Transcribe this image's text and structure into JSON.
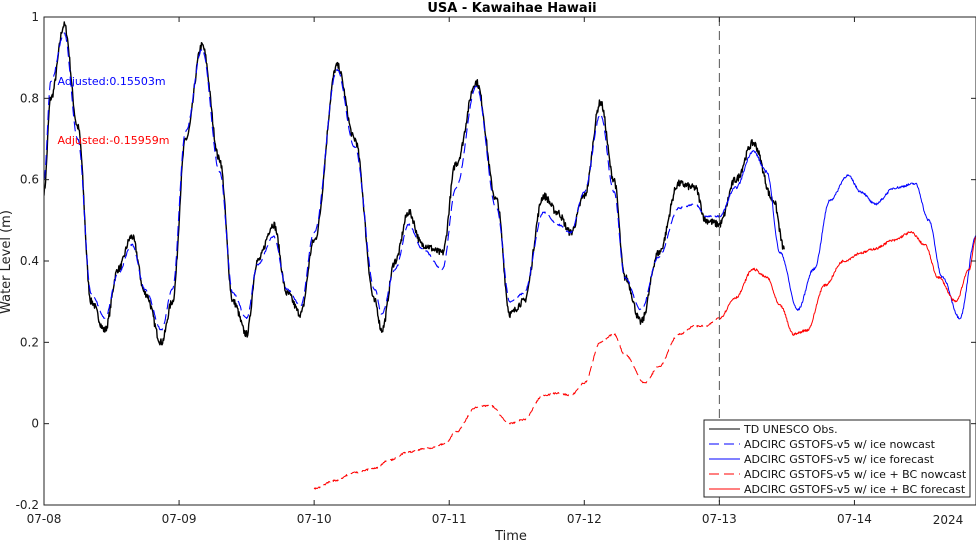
{
  "chart_data": {
    "type": "line",
    "title": "USA - Kawaihae Hawaii",
    "xlabel": "Time",
    "ylabel": "Water Level (m)",
    "xlim": [
      0,
      6.9
    ],
    "ylim": [
      -0.2,
      1.0
    ],
    "x_ticks": [
      {
        "value": 0,
        "label": "07-08"
      },
      {
        "value": 1,
        "label": "07-09"
      },
      {
        "value": 2,
        "label": "07-10"
      },
      {
        "value": 3,
        "label": "07-11"
      },
      {
        "value": 4,
        "label": "07-12"
      },
      {
        "value": 5,
        "label": "07-13"
      },
      {
        "value": 6,
        "label": "07-14"
      }
    ],
    "y_ticks": [
      -0.2,
      0,
      0.2,
      0.4,
      0.6,
      0.8,
      1
    ],
    "y_tick_labels": [
      "-0.2",
      "0",
      "0.2",
      "0.4",
      "0.6",
      "0.8",
      "1"
    ],
    "year_label": "2024",
    "grid": false,
    "forecast_start_x": 5.0,
    "legend_position": "bottom-right",
    "annotations": [
      {
        "text": "Adjusted:0.15503m",
        "x": 0.1,
        "y": 0.843,
        "color": "#0000ff"
      },
      {
        "text": "Adjusted:-0.15959m",
        "x": 0.1,
        "y": 0.697,
        "color": "#ff0000"
      }
    ],
    "series": [
      {
        "name": "TD UNESCO Obs.",
        "color": "#000000",
        "dash": "solid",
        "width": 1.4,
        "x": [
          0.0,
          0.05,
          0.15,
          0.25,
          0.35,
          0.45,
          0.55,
          0.65,
          0.75,
          0.87,
          0.95,
          1.05,
          1.17,
          1.3,
          1.4,
          1.5,
          1.58,
          1.7,
          1.8,
          1.9,
          2.0,
          2.17,
          2.3,
          2.45,
          2.5,
          2.6,
          2.7,
          2.8,
          2.95,
          3.05,
          3.2,
          3.35,
          3.45,
          3.55,
          3.7,
          3.8,
          3.9,
          4.0,
          4.12,
          4.22,
          4.3,
          4.42,
          4.55,
          4.7,
          4.82,
          4.9,
          5.0,
          5.12,
          5.25,
          5.4,
          5.48
        ],
        "y": [
          0.57,
          0.8,
          0.98,
          0.73,
          0.3,
          0.23,
          0.38,
          0.46,
          0.32,
          0.2,
          0.3,
          0.7,
          0.93,
          0.65,
          0.3,
          0.22,
          0.4,
          0.49,
          0.32,
          0.27,
          0.45,
          0.88,
          0.7,
          0.3,
          0.23,
          0.4,
          0.52,
          0.44,
          0.42,
          0.64,
          0.84,
          0.55,
          0.27,
          0.3,
          0.56,
          0.52,
          0.47,
          0.56,
          0.79,
          0.6,
          0.36,
          0.25,
          0.42,
          0.59,
          0.58,
          0.5,
          0.49,
          0.6,
          0.69,
          0.55,
          0.43
        ]
      },
      {
        "name": "ADCIRC GSTOFS-v5 w/ ice nowcast",
        "color": "#0000ff",
        "dash": "dashed",
        "width": 1.1,
        "x": [
          0.0,
          0.05,
          0.15,
          0.25,
          0.35,
          0.45,
          0.55,
          0.65,
          0.75,
          0.87,
          0.95,
          1.05,
          1.17,
          1.3,
          1.4,
          1.5,
          1.58,
          1.7,
          1.8,
          1.9,
          2.0,
          2.17,
          2.3,
          2.45,
          2.5,
          2.6,
          2.7,
          2.8,
          2.95,
          3.05,
          3.2,
          3.35,
          3.45,
          3.55,
          3.7,
          3.8,
          3.9,
          4.0,
          4.12,
          4.22,
          4.3,
          4.42,
          4.55,
          4.7,
          4.82,
          4.9,
          5.0
        ],
        "y": [
          0.6,
          0.84,
          0.96,
          0.7,
          0.32,
          0.26,
          0.37,
          0.44,
          0.33,
          0.23,
          0.33,
          0.72,
          0.92,
          0.62,
          0.32,
          0.26,
          0.39,
          0.46,
          0.33,
          0.29,
          0.47,
          0.87,
          0.68,
          0.33,
          0.27,
          0.38,
          0.49,
          0.43,
          0.38,
          0.58,
          0.83,
          0.53,
          0.3,
          0.32,
          0.52,
          0.49,
          0.47,
          0.57,
          0.76,
          0.57,
          0.36,
          0.28,
          0.41,
          0.53,
          0.54,
          0.51,
          0.51
        ]
      },
      {
        "name": "ADCIRC GSTOFS-v5 w/ ice forecast",
        "color": "#0000ff",
        "dash": "solid",
        "width": 1.0,
        "x": [
          5.0,
          5.12,
          5.25,
          5.35,
          5.45,
          5.58,
          5.7,
          5.82,
          5.95,
          6.05,
          6.15,
          6.3,
          6.45,
          6.55,
          6.65,
          6.78,
          6.9
        ],
        "y": [
          0.51,
          0.58,
          0.67,
          0.62,
          0.42,
          0.28,
          0.38,
          0.55,
          0.61,
          0.57,
          0.54,
          0.58,
          0.59,
          0.5,
          0.36,
          0.26,
          0.46
        ]
      },
      {
        "name": "ADCIRC GSTOFS-v5 w/ ice + BC nowcast",
        "color": "#ff0000",
        "dash": "dashed",
        "width": 1.0,
        "x": [
          2.0,
          2.15,
          2.3,
          2.45,
          2.55,
          2.7,
          2.85,
          2.97,
          3.05,
          3.2,
          3.3,
          3.45,
          3.55,
          3.7,
          3.8,
          3.9,
          4.0,
          4.12,
          4.22,
          4.3,
          4.45,
          4.55,
          4.7,
          4.82,
          4.9,
          5.0
        ],
        "y": [
          -0.16,
          -0.14,
          -0.12,
          -0.11,
          -0.09,
          -0.07,
          -0.06,
          -0.05,
          -0.02,
          0.04,
          0.045,
          0.0,
          0.01,
          0.07,
          0.075,
          0.07,
          0.1,
          0.2,
          0.22,
          0.17,
          0.1,
          0.14,
          0.22,
          0.24,
          0.24,
          0.26
        ]
      },
      {
        "name": "ADCIRC GSTOFS-v5 w/ ice + BC forecast",
        "color": "#ff0000",
        "dash": "solid",
        "width": 1.0,
        "x": [
          5.0,
          5.12,
          5.25,
          5.35,
          5.45,
          5.55,
          5.65,
          5.78,
          5.92,
          6.05,
          6.15,
          6.28,
          6.42,
          6.52,
          6.62,
          6.75,
          6.85,
          6.9
        ],
        "y": [
          0.26,
          0.31,
          0.38,
          0.36,
          0.29,
          0.22,
          0.23,
          0.34,
          0.4,
          0.42,
          0.43,
          0.45,
          0.47,
          0.44,
          0.36,
          0.3,
          0.38,
          0.46
        ]
      }
    ]
  }
}
